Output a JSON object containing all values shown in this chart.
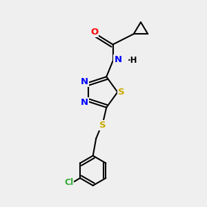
{
  "bg_color": "#efefef",
  "atom_colors": {
    "C": "#000000",
    "N": "#0000ff",
    "O": "#ff0000",
    "S": "#ccaa00",
    "Cl": "#33aa33",
    "H": "#000000"
  },
  "bond_color": "#000000",
  "bond_width": 1.5,
  "font_size": 9.5
}
